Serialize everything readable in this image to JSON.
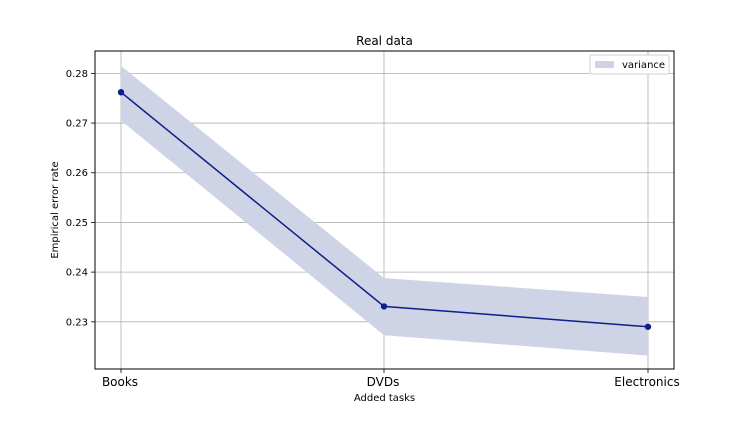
{
  "chart_data": {
    "type": "line",
    "title": "Real data",
    "xlabel": "Added tasks",
    "ylabel": "Empirical error rate",
    "categories": [
      "Books",
      "DVDs",
      "Electronics"
    ],
    "series": [
      {
        "values": [
          0.2762,
          0.2331,
          0.229
        ],
        "band_lower": [
          0.2705,
          0.2273,
          0.2232
        ],
        "band_upper": [
          0.2815,
          0.2388,
          0.235
        ]
      }
    ],
    "legend": [
      {
        "label": "variance"
      }
    ],
    "legend_position": "top-right",
    "ylim": [
      0.2205,
      0.2845
    ],
    "yticks": [
      0.23,
      0.24,
      0.25,
      0.26,
      0.27,
      0.28
    ],
    "ytick_labels": [
      "0.23",
      "0.24",
      "0.25",
      "0.26",
      "0.27",
      "0.28"
    ],
    "grid": true,
    "colors": {
      "line": "#0d1f8a",
      "band": "#ced3e6"
    }
  }
}
